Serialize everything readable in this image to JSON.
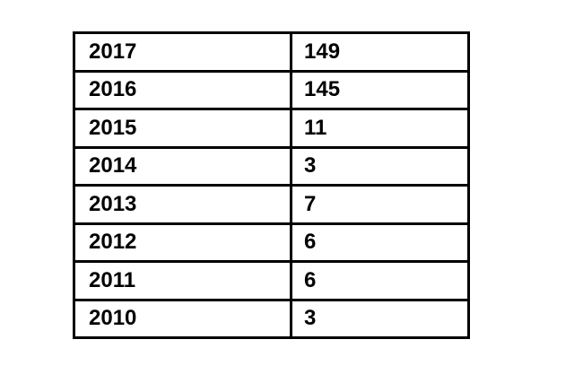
{
  "table": {
    "rows": [
      [
        "2017",
        "149"
      ],
      [
        "2016",
        "145"
      ],
      [
        "2015",
        "11"
      ],
      [
        "2014",
        "3"
      ],
      [
        "2013",
        "7"
      ],
      [
        "2012",
        "6"
      ],
      [
        "2011",
        "6"
      ],
      [
        "2010",
        "3"
      ]
    ]
  }
}
